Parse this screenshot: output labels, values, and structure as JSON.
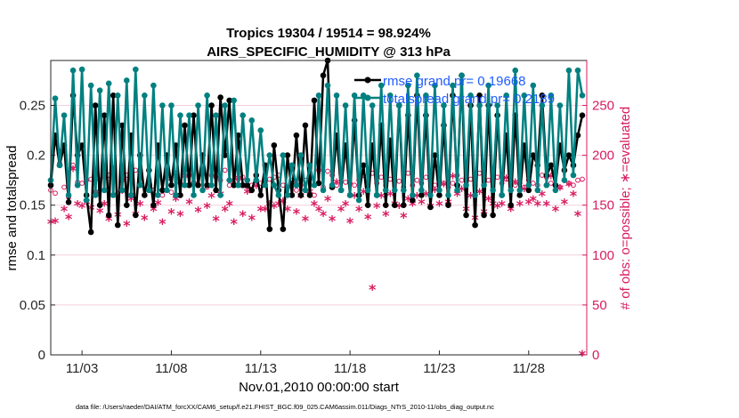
{
  "chart_data": {
    "type": "line",
    "title": "Tropics 19304 / 19514 = 98.924%",
    "subtitle": "AIRS_SPECIFIC_HUMIDITY @ 313 hPa",
    "xlabel": "Nov.01,2010 00:00:00 start",
    "ylabel": "rmse and totalspread",
    "y2label": "# of obs: o=possible; ∗=evaluated",
    "footer": "data file: /Users/raeder/DAI/ATM_forcXX/CAM6_setup/f.e21.FHIST_BGC.f09_025.CAM6assim.011/Diags_NTrS_2010-11/obs_diag_output.nc",
    "xlim": [
      1.25,
      31.25
    ],
    "ylim": [
      0,
      0.295
    ],
    "y2lim": [
      0,
      295
    ],
    "x_ticks": [
      {
        "value": 3,
        "label": "11/03"
      },
      {
        "value": 8,
        "label": "11/08"
      },
      {
        "value": 13,
        "label": "11/13"
      },
      {
        "value": 18,
        "label": "11/18"
      },
      {
        "value": 23,
        "label": "11/23"
      },
      {
        "value": 28,
        "label": "11/28"
      }
    ],
    "y_ticks": [
      {
        "value": 0,
        "label": "0"
      },
      {
        "value": 0.05,
        "label": "0.05"
      },
      {
        "value": 0.1,
        "label": "0.1"
      },
      {
        "value": 0.15,
        "label": "0.15"
      },
      {
        "value": 0.2,
        "label": "0.2"
      },
      {
        "value": 0.25,
        "label": "0.25"
      }
    ],
    "y2_ticks": [
      {
        "value": 0,
        "label": "0"
      },
      {
        "value": 50,
        "label": "50"
      },
      {
        "value": 100,
        "label": "100"
      },
      {
        "value": 150,
        "label": "150"
      },
      {
        "value": 200,
        "label": "200"
      },
      {
        "value": 250,
        "label": "250"
      }
    ],
    "x_start": 1.25,
    "x_step": 0.25,
    "series": [
      {
        "name": "rmse",
        "legend": "rmse grand pr= 0.19668",
        "color": "#000000",
        "values": [
          0.17,
          0.22,
          0.19,
          0.21,
          0.153,
          0.26,
          0.2,
          0.21,
          0.16,
          0.123,
          0.25,
          0.15,
          0.24,
          0.14,
          0.26,
          0.13,
          0.23,
          0.15,
          0.22,
          0.14,
          0.2,
          0.16,
          0.185,
          0.15,
          0.21,
          0.165,
          0.2,
          0.17,
          0.21,
          0.16,
          0.23,
          0.17,
          0.24,
          0.17,
          0.2,
          0.17,
          0.25,
          0.165,
          0.258,
          0.2,
          0.255,
          0.17,
          0.22,
          0.17,
          0.17,
          0.165,
          0.18,
          0.16,
          0.19,
          0.126,
          0.21,
          0.165,
          0.126,
          0.2,
          0.16,
          0.22,
          0.16,
          0.23,
          0.16,
          0.255,
          0.172,
          0.28,
          0.295,
          0.168,
          0.22,
          0.165,
          0.21,
          0.16,
          0.235,
          0.16,
          0.19,
          0.15,
          0.21,
          0.16,
          0.23,
          0.15,
          0.215,
          0.15,
          0.25,
          0.15,
          0.24,
          0.155,
          0.26,
          0.16,
          0.24,
          0.148,
          0.2,
          0.16,
          0.23,
          0.15,
          0.26,
          0.17,
          0.28,
          0.14,
          0.25,
          0.13,
          0.26,
          0.14,
          0.25,
          0.14,
          0.24,
          0.16,
          0.22,
          0.15,
          0.24,
          0.16,
          0.21,
          0.165,
          0.2,
          0.19,
          0.26,
          0.18,
          0.19,
          0.17,
          0.21,
          0.185,
          0.2,
          0.19,
          0.22,
          0.24
        ]
      },
      {
        "name": "totalspread",
        "legend": "totalspread grand pr= 0.2189",
        "color": "#008080",
        "values": [
          0.175,
          0.257,
          0.19,
          0.24,
          0.16,
          0.285,
          0.17,
          0.286,
          0.155,
          0.27,
          0.16,
          0.265,
          0.165,
          0.272,
          0.16,
          0.26,
          0.165,
          0.275,
          0.16,
          0.286,
          0.17,
          0.26,
          0.165,
          0.27,
          0.16,
          0.25,
          0.165,
          0.25,
          0.16,
          0.24,
          0.17,
          0.24,
          0.16,
          0.25,
          0.165,
          0.26,
          0.17,
          0.24,
          0.16,
          0.25,
          0.175,
          0.255,
          0.17,
          0.24,
          0.175,
          0.235,
          0.175,
          0.225,
          0.17,
          0.2,
          0.17,
          0.16,
          0.2,
          0.16,
          0.19,
          0.17,
          0.2,
          0.165,
          0.19,
          0.17,
          0.26,
          0.165,
          0.27,
          0.17,
          0.26,
          0.165,
          0.25,
          0.16,
          0.26,
          0.155,
          0.26,
          0.165,
          0.25,
          0.16,
          0.27,
          0.165,
          0.26,
          0.165,
          0.25,
          0.165,
          0.27,
          0.16,
          0.28,
          0.165,
          0.26,
          0.16,
          0.27,
          0.165,
          0.25,
          0.16,
          0.27,
          0.165,
          0.28,
          0.17,
          0.26,
          0.16,
          0.25,
          0.17,
          0.27,
          0.165,
          0.25,
          0.16,
          0.26,
          0.165,
          0.285,
          0.165,
          0.26,
          0.17,
          0.27,
          0.165,
          0.25,
          0.17,
          0.26,
          0.165,
          0.25,
          0.175,
          0.285,
          0.18,
          0.285,
          0.26
        ]
      }
    ],
    "obs_possible": {
      "name": "# of obs possible",
      "marker": "o",
      "color": "#d81b60",
      "values": [
        165,
        162,
        192,
        168,
        158,
        190,
        173,
        172,
        175,
        176,
        163,
        175,
        178,
        180,
        160,
        162,
        175,
        180,
        178,
        185,
        170,
        160,
        175,
        165,
        180,
        160,
        182,
        163,
        182,
        172,
        185,
        180,
        173,
        170,
        182,
        168,
        180,
        178,
        175,
        185,
        170,
        172,
        176,
        178,
        168,
        170,
        175,
        172,
        174,
        176,
        178,
        180,
        170,
        168,
        175,
        165,
        170,
        175,
        182,
        160,
        185,
        168,
        184,
        180,
        170,
        182,
        173,
        172,
        170,
        175,
        180,
        168,
        182,
        172,
        178,
        170,
        176,
        184,
        174,
        168,
        182,
        170,
        175,
        172,
        178,
        180,
        170,
        175,
        172,
        168,
        172,
        180,
        175,
        178,
        176,
        170,
        182,
        172,
        175,
        175,
        178,
        172,
        176,
        180,
        170,
        172,
        168,
        175,
        172,
        170,
        180,
        178,
        172,
        170,
        168,
        175,
        172,
        170,
        175,
        176
      ]
    },
    "obs_evaluated": {
      "name": "# of obs evaluated",
      "marker": "*",
      "color": "#d81b60",
      "values": [
        132,
        133,
        202,
        145,
        137,
        185,
        150,
        148,
        152,
        146,
        162,
        143,
        150,
        135,
        185,
        139,
        163,
        130,
        155,
        140,
        150,
        136,
        168,
        145,
        151,
        132,
        175,
        142,
        155,
        140,
        178,
        152,
        170,
        144,
        180,
        148,
        158,
        135,
        160,
        145,
        150,
        132,
        176,
        140,
        162,
        136,
        168,
        145,
        145,
        150,
        148,
        150,
        153,
        145,
        170,
        142,
        158,
        135,
        162,
        150,
        145,
        140,
        155,
        135,
        172,
        145,
        150,
        133,
        158,
        145,
        162,
        137,
        66,
        148,
        158,
        140,
        160,
        150,
        148,
        138,
        155,
        150,
        158,
        152,
        160,
        148,
        164,
        150,
        170,
        152,
        178,
        160,
        165,
        145,
        158,
        136,
        162,
        142,
        155,
        150,
        148,
        150,
        176,
        145,
        172,
        150,
        165,
        152,
        155,
        150,
        160,
        150,
        178,
        145,
        166,
        152,
        170,
        160,
        140,
        0
      ]
    }
  }
}
